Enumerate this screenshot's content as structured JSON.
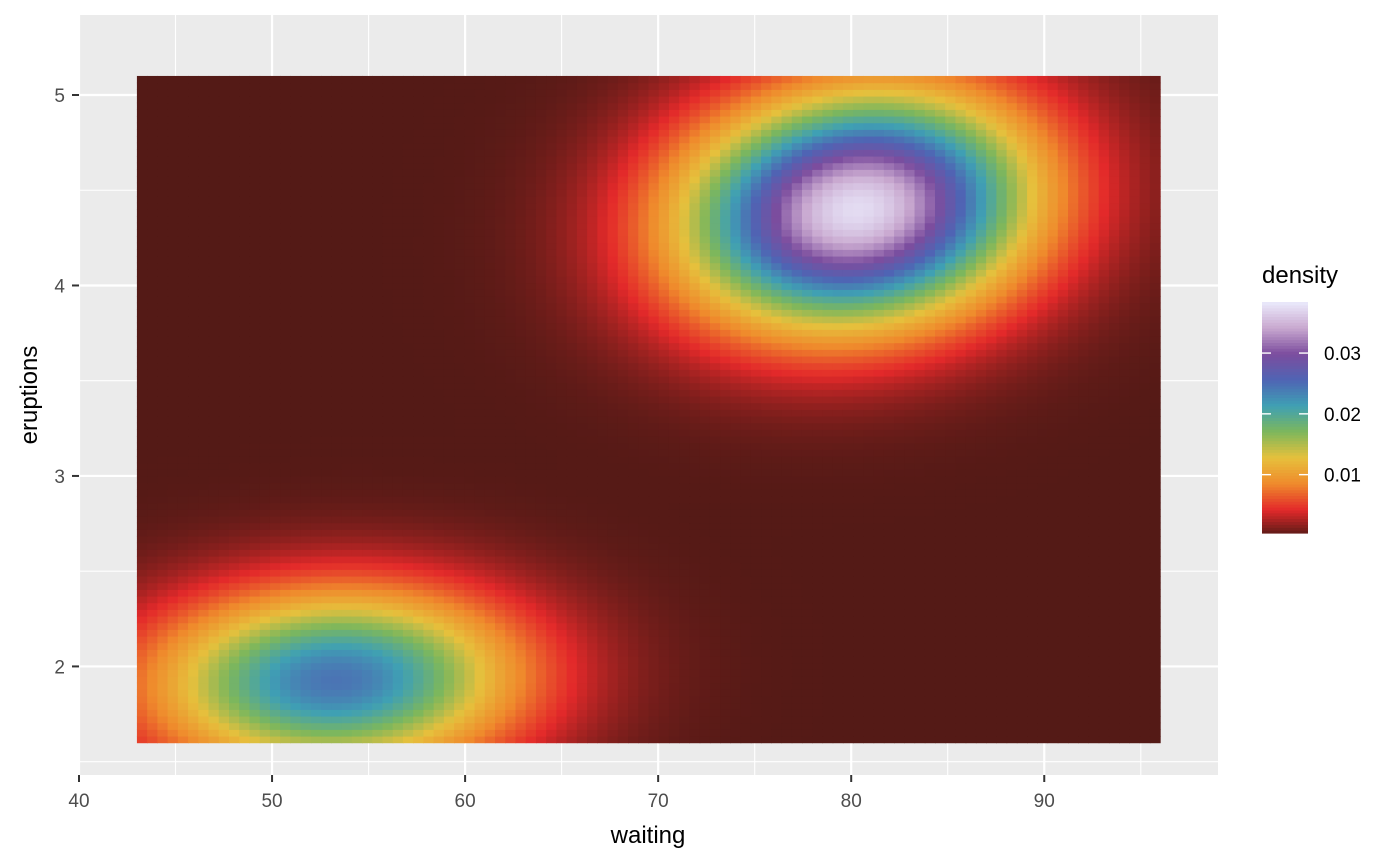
{
  "chart_data": {
    "type": "heatmap",
    "title": "",
    "xlabel": "waiting",
    "ylabel": "eruptions",
    "xlim": [
      40,
      99
    ],
    "ylim": [
      1.43,
      5.42
    ],
    "x_ticks": [
      40,
      50,
      60,
      70,
      80,
      90
    ],
    "y_ticks": [
      2,
      3,
      4,
      5
    ],
    "x_tick_labels": [
      "40",
      "50",
      "60",
      "70",
      "80",
      "90"
    ],
    "y_tick_labels": [
      "2",
      "3",
      "4",
      "5"
    ],
    "grid": true,
    "raster_extent": {
      "x": [
        43,
        96
      ],
      "y": [
        1.6,
        5.1
      ]
    },
    "grid_resolution": 100,
    "density_peaks": [
      {
        "waiting": 80.3,
        "eruptions": 4.4,
        "density": 0.0375
      },
      {
        "waiting": 53.3,
        "eruptions": 1.93,
        "density": 0.0245
      }
    ],
    "density_range": [
      0,
      0.0385
    ],
    "legend": {
      "title": "density",
      "position": "right",
      "breaks": [
        0.01,
        0.02,
        0.03
      ],
      "labels": [
        "0.01",
        "0.02",
        "0.03"
      ]
    },
    "colormap": [
      "#541a16",
      "#e3292a",
      "#ef8a2c",
      "#e6c03c",
      "#7db75c",
      "#3fa0b4",
      "#4f64b4",
      "#7c4d9e",
      "#c9a9d0",
      "#ebebfc"
    ]
  }
}
